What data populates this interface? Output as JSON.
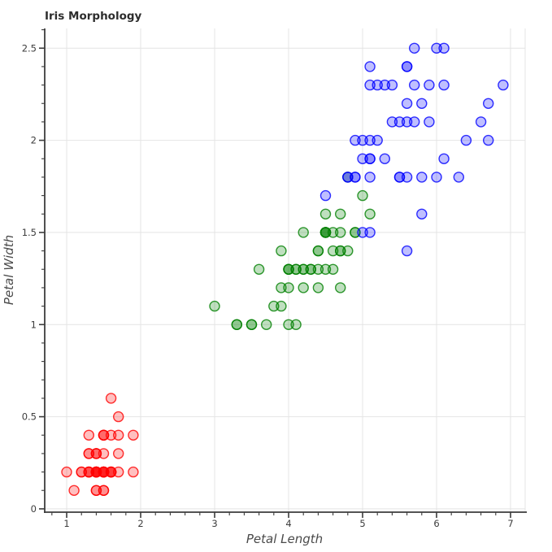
{
  "chart_data": {
    "type": "scatter",
    "title": "Iris Morphology",
    "xlabel": "Petal Length",
    "ylabel": "Petal Width",
    "xlim": [
      0.703,
      7.198
    ],
    "ylim": [
      -0.018,
      2.607
    ],
    "x_ticks": [
      1,
      2,
      3,
      4,
      5,
      6,
      7
    ],
    "y_ticks": [
      0,
      0.5,
      1,
      1.5,
      2,
      2.5
    ],
    "x_minor_step": 0.2,
    "y_minor_step": 0.1,
    "grid": true,
    "legend": "none",
    "colors": {
      "background": "#ffffff",
      "grid": "#e4e4e4",
      "axis": "#3c3c3c",
      "tick_label": "#3d3d3d",
      "title": "#2d2d2d",
      "axis_label": "#4a4a4a"
    },
    "marker": {
      "radius": 6,
      "stroke_width": 1.4,
      "fill_opacity": 0.25,
      "stroke_opacity": 0.8
    },
    "series": [
      {
        "name": "red",
        "color": "#ff0000",
        "points": [
          [
            1.4,
            0.2
          ],
          [
            1.4,
            0.2
          ],
          [
            1.3,
            0.2
          ],
          [
            1.5,
            0.2
          ],
          [
            1.4,
            0.2
          ],
          [
            1.7,
            0.4
          ],
          [
            1.4,
            0.3
          ],
          [
            1.5,
            0.2
          ],
          [
            1.4,
            0.2
          ],
          [
            1.5,
            0.1
          ],
          [
            1.5,
            0.2
          ],
          [
            1.6,
            0.2
          ],
          [
            1.4,
            0.1
          ],
          [
            1.1,
            0.1
          ],
          [
            1.2,
            0.2
          ],
          [
            1.5,
            0.4
          ],
          [
            1.3,
            0.4
          ],
          [
            1.4,
            0.3
          ],
          [
            1.7,
            0.3
          ],
          [
            1.5,
            0.3
          ],
          [
            1.7,
            0.2
          ],
          [
            1.5,
            0.4
          ],
          [
            1.0,
            0.2
          ],
          [
            1.7,
            0.5
          ],
          [
            1.9,
            0.2
          ],
          [
            1.6,
            0.2
          ],
          [
            1.6,
            0.4
          ],
          [
            1.5,
            0.2
          ],
          [
            1.4,
            0.2
          ],
          [
            1.6,
            0.2
          ],
          [
            1.6,
            0.2
          ],
          [
            1.5,
            0.4
          ],
          [
            1.5,
            0.1
          ],
          [
            1.4,
            0.2
          ],
          [
            1.5,
            0.2
          ],
          [
            1.2,
            0.2
          ],
          [
            1.3,
            0.2
          ],
          [
            1.4,
            0.1
          ],
          [
            1.3,
            0.2
          ],
          [
            1.5,
            0.2
          ],
          [
            1.3,
            0.3
          ],
          [
            1.3,
            0.3
          ],
          [
            1.3,
            0.2
          ],
          [
            1.6,
            0.6
          ],
          [
            1.9,
            0.4
          ],
          [
            1.4,
            0.3
          ],
          [
            1.6,
            0.2
          ],
          [
            1.4,
            0.2
          ],
          [
            1.5,
            0.2
          ],
          [
            1.4,
            0.2
          ]
        ]
      },
      {
        "name": "green",
        "color": "#008000",
        "points": [
          [
            4.7,
            1.4
          ],
          [
            4.5,
            1.5
          ],
          [
            4.9,
            1.5
          ],
          [
            4.0,
            1.3
          ],
          [
            4.6,
            1.5
          ],
          [
            4.5,
            1.3
          ],
          [
            4.7,
            1.6
          ],
          [
            3.3,
            1.0
          ],
          [
            4.6,
            1.3
          ],
          [
            3.9,
            1.4
          ],
          [
            3.5,
            1.0
          ],
          [
            4.2,
            1.5
          ],
          [
            4.0,
            1.0
          ],
          [
            4.7,
            1.4
          ],
          [
            3.6,
            1.3
          ],
          [
            4.4,
            1.4
          ],
          [
            4.5,
            1.5
          ],
          [
            4.1,
            1.0
          ],
          [
            4.5,
            1.5
          ],
          [
            3.9,
            1.1
          ],
          [
            4.8,
            1.8
          ],
          [
            4.0,
            1.3
          ],
          [
            4.9,
            1.5
          ],
          [
            4.7,
            1.2
          ],
          [
            4.3,
            1.3
          ],
          [
            4.4,
            1.4
          ],
          [
            4.8,
            1.4
          ],
          [
            5.0,
            1.7
          ],
          [
            4.5,
            1.5
          ],
          [
            3.5,
            1.0
          ],
          [
            3.8,
            1.1
          ],
          [
            3.7,
            1.0
          ],
          [
            3.9,
            1.2
          ],
          [
            5.1,
            1.6
          ],
          [
            4.5,
            1.5
          ],
          [
            4.5,
            1.6
          ],
          [
            4.7,
            1.5
          ],
          [
            4.4,
            1.3
          ],
          [
            4.1,
            1.3
          ],
          [
            4.0,
            1.3
          ],
          [
            4.4,
            1.2
          ],
          [
            4.6,
            1.4
          ],
          [
            4.0,
            1.2
          ],
          [
            3.3,
            1.0
          ],
          [
            4.2,
            1.3
          ],
          [
            4.2,
            1.2
          ],
          [
            4.2,
            1.3
          ],
          [
            4.3,
            1.3
          ],
          [
            3.0,
            1.1
          ],
          [
            4.1,
            1.3
          ]
        ]
      },
      {
        "name": "blue",
        "color": "#0000ff",
        "points": [
          [
            6.0,
            2.5
          ],
          [
            5.1,
            1.9
          ],
          [
            5.9,
            2.1
          ],
          [
            5.6,
            1.8
          ],
          [
            5.8,
            2.2
          ],
          [
            6.6,
            2.1
          ],
          [
            4.5,
            1.7
          ],
          [
            6.3,
            1.8
          ],
          [
            5.8,
            1.8
          ],
          [
            6.1,
            2.5
          ],
          [
            5.1,
            2.0
          ],
          [
            5.3,
            1.9
          ],
          [
            5.5,
            2.1
          ],
          [
            5.0,
            2.0
          ],
          [
            5.1,
            2.4
          ],
          [
            5.3,
            2.3
          ],
          [
            5.5,
            1.8
          ],
          [
            6.7,
            2.2
          ],
          [
            6.9,
            2.3
          ],
          [
            5.0,
            1.5
          ],
          [
            5.7,
            2.3
          ],
          [
            4.9,
            2.0
          ],
          [
            6.7,
            2.0
          ],
          [
            4.9,
            1.8
          ],
          [
            5.7,
            2.1
          ],
          [
            6.0,
            1.8
          ],
          [
            4.8,
            1.8
          ],
          [
            4.9,
            1.8
          ],
          [
            5.6,
            2.1
          ],
          [
            5.8,
            1.6
          ],
          [
            6.1,
            1.9
          ],
          [
            6.4,
            2.0
          ],
          [
            5.6,
            2.2
          ],
          [
            5.1,
            1.5
          ],
          [
            5.6,
            1.4
          ],
          [
            6.1,
            2.3
          ],
          [
            5.6,
            2.4
          ],
          [
            5.5,
            1.8
          ],
          [
            4.8,
            1.8
          ],
          [
            5.4,
            2.1
          ],
          [
            5.6,
            2.4
          ],
          [
            5.1,
            2.3
          ],
          [
            5.1,
            1.9
          ],
          [
            5.9,
            2.3
          ],
          [
            5.7,
            2.5
          ],
          [
            5.2,
            2.3
          ],
          [
            5.0,
            1.9
          ],
          [
            5.2,
            2.0
          ],
          [
            5.4,
            2.3
          ],
          [
            5.1,
            1.8
          ]
        ]
      }
    ]
  }
}
